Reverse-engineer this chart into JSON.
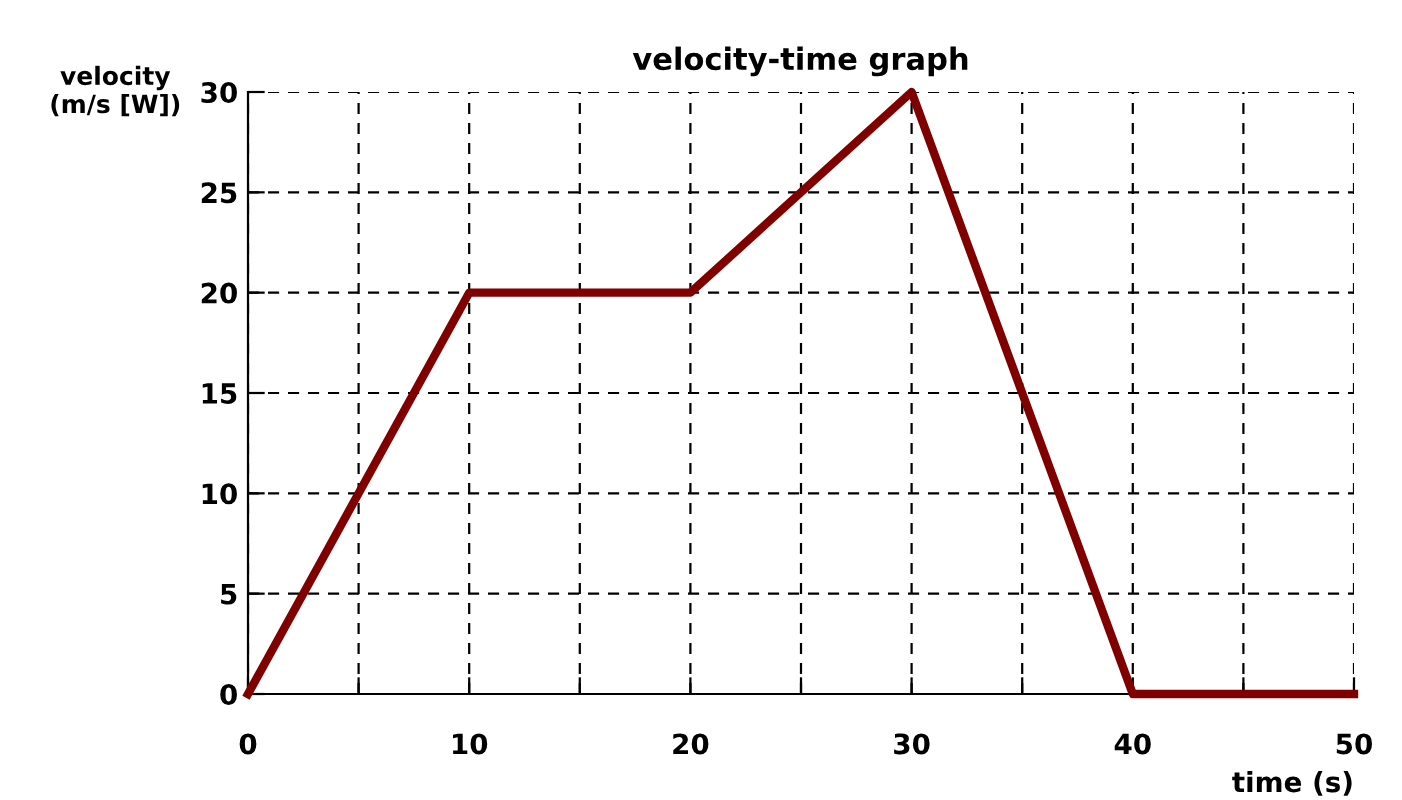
{
  "chart_data": {
    "type": "line",
    "title": "velocity-time graph",
    "xlabel": "time (s)",
    "ylabel": "velocity\n(m/s [W])",
    "x": [
      0,
      10,
      20,
      30,
      40,
      50
    ],
    "series": [
      {
        "color": "#800000",
        "values": [
          0,
          20,
          20,
          30,
          0,
          0
        ]
      }
    ],
    "xlim": [
      0,
      50
    ],
    "ylim": [
      0,
      30
    ],
    "xticks": [
      0,
      {
        "value": 5,
        "label": null
      },
      10,
      {
        "value": 15,
        "label": null
      },
      20,
      {
        "value": 25,
        "label": null
      },
      30,
      {
        "value": 35,
        "label": null
      },
      40,
      {
        "value": 45,
        "label": null
      },
      50
    ],
    "yticks": [
      0,
      5,
      10,
      15,
      20,
      25,
      30
    ],
    "grid": true,
    "line_style": "solid",
    "marker": "none",
    "legend": false
  }
}
